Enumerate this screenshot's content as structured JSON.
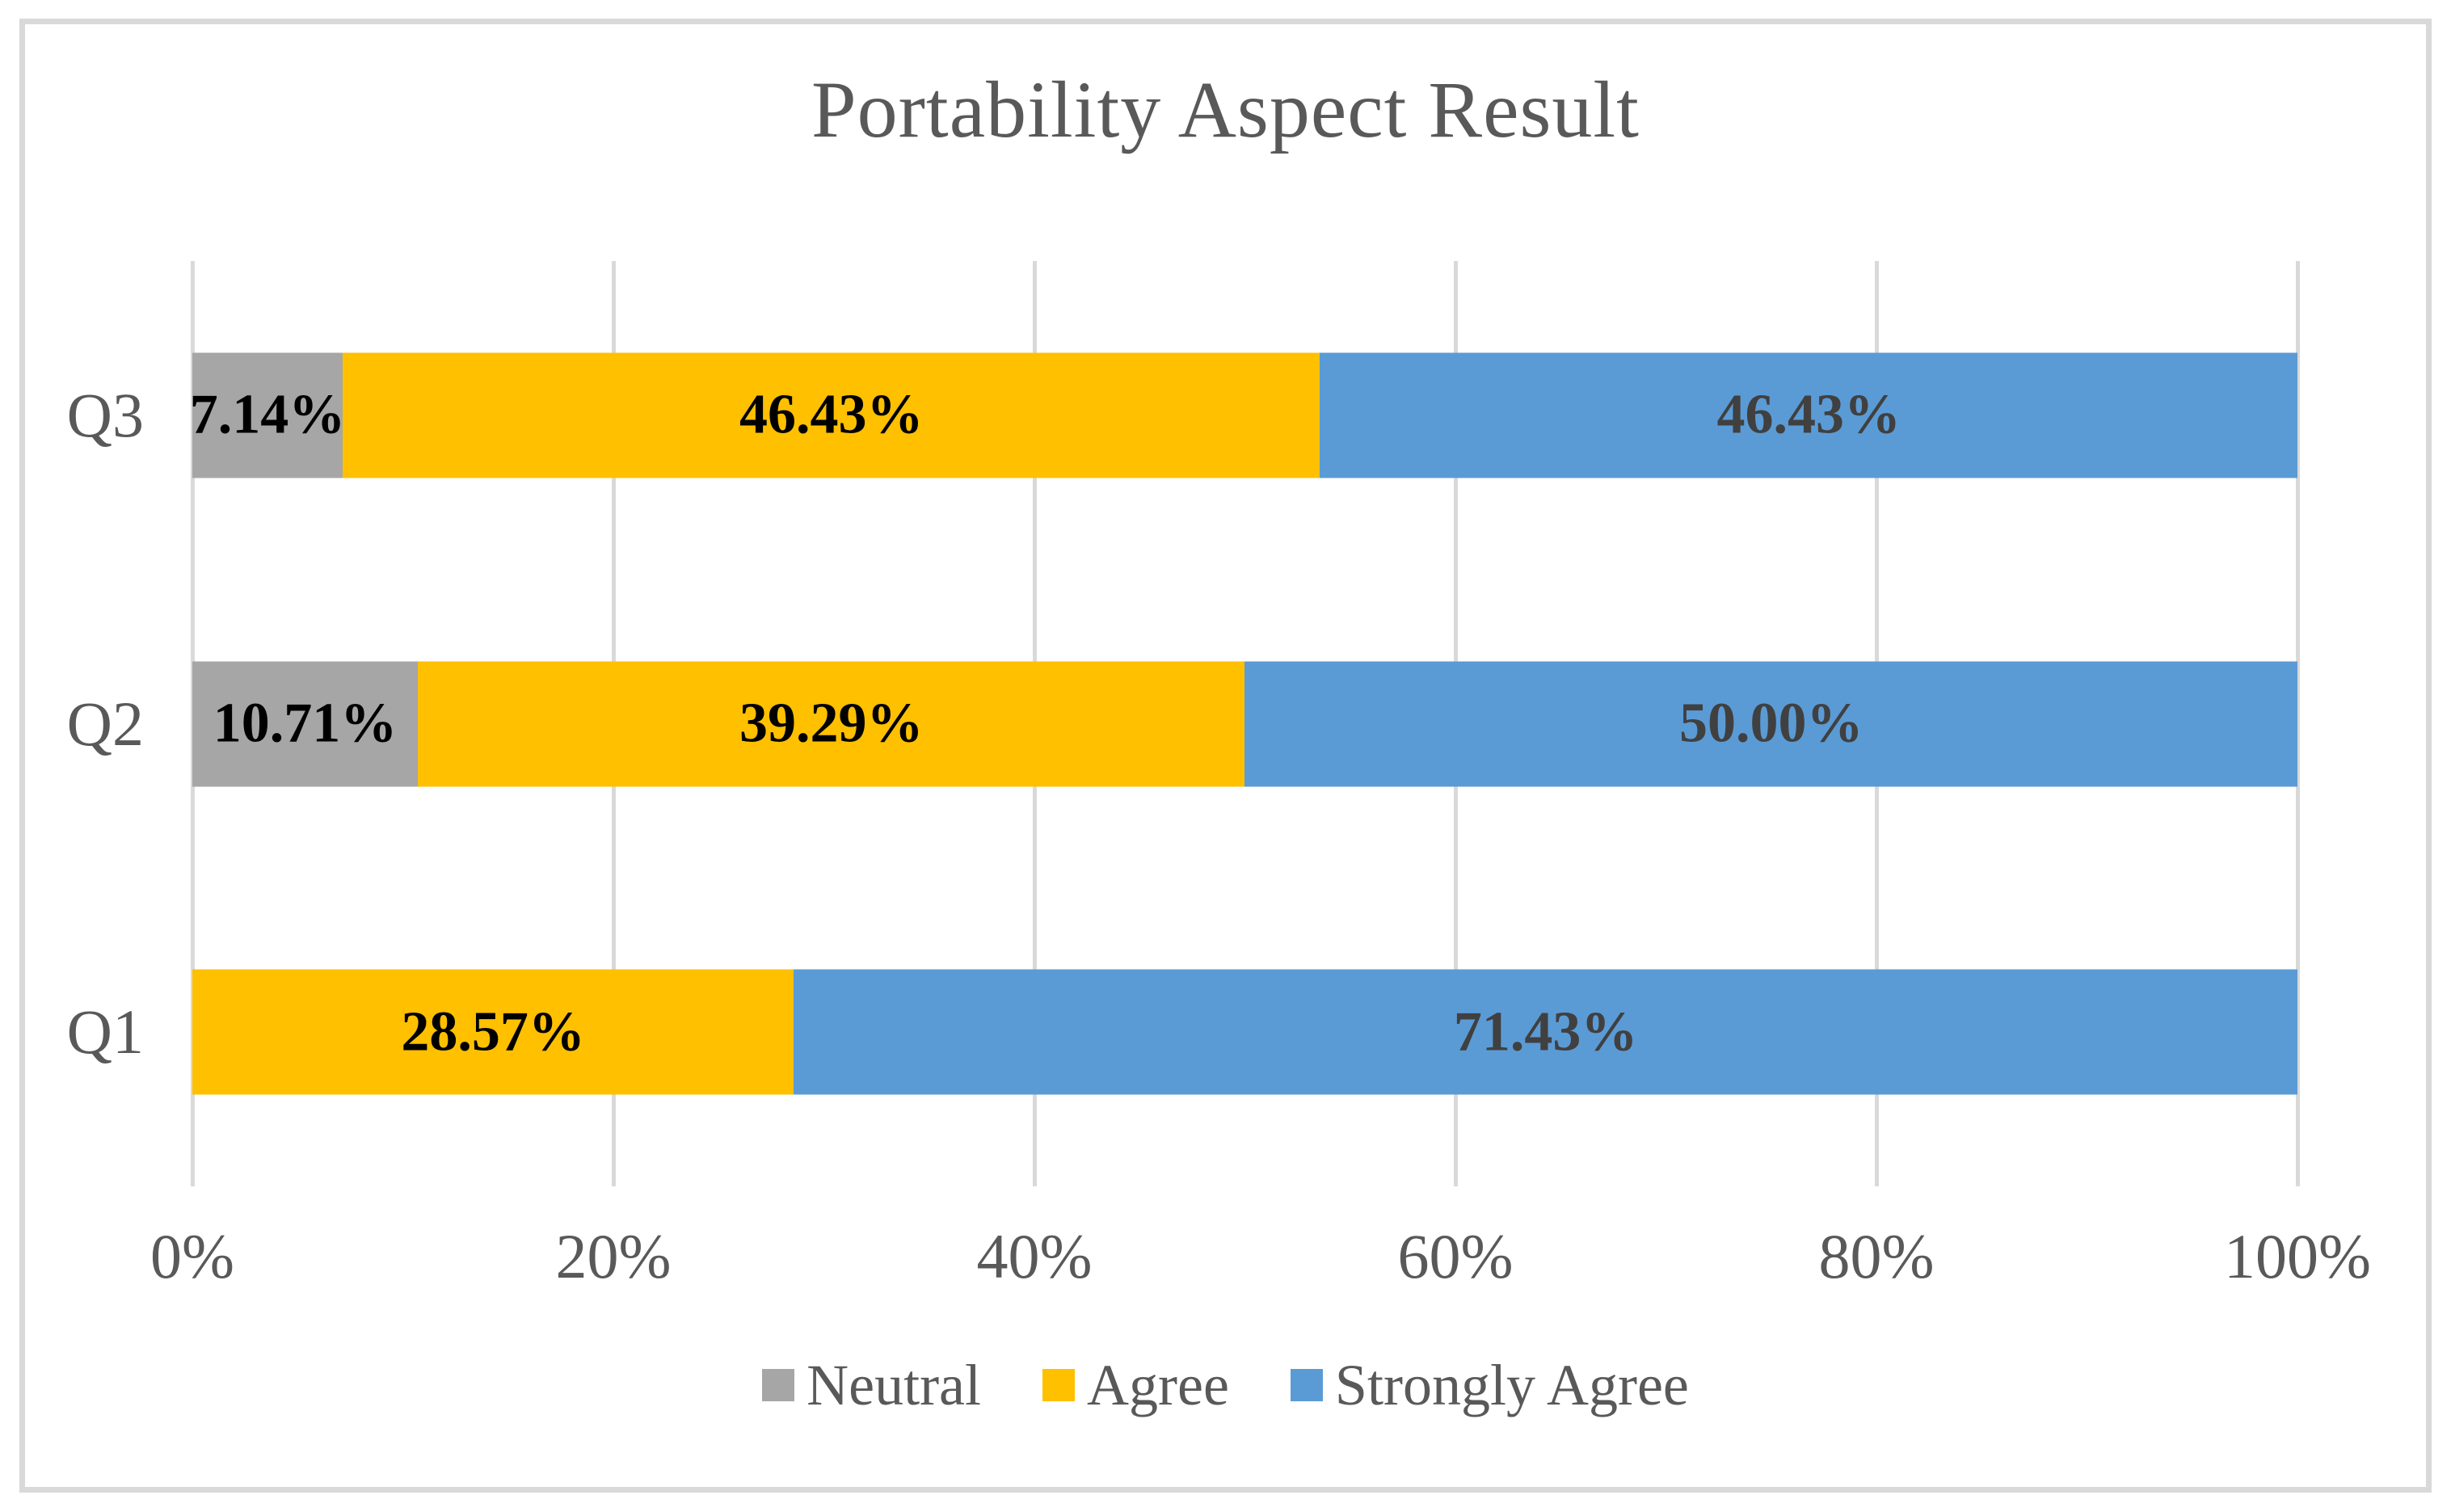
{
  "chart_data": {
    "type": "bar",
    "subtype": "horizontal-stacked",
    "title": "Portability Aspect Result",
    "categories": [
      "Q3",
      "Q2",
      "Q1"
    ],
    "series": [
      {
        "name": "Neutral",
        "color": "#A6A6A6",
        "label_color": "#000000",
        "values": [
          7.14,
          10.71,
          0
        ],
        "labels": [
          "7.14%",
          "10.71%",
          ""
        ]
      },
      {
        "name": "Agree",
        "color": "#FFC000",
        "label_color": "#000000",
        "values": [
          46.43,
          39.29,
          28.57
        ],
        "labels": [
          "46.43%",
          "39.29%",
          "28.57%"
        ]
      },
      {
        "name": "Strongly Agree",
        "color": "#5B9BD5",
        "label_color": "#404040",
        "values": [
          46.43,
          50.0,
          71.43
        ],
        "labels": [
          "46.43%",
          "50.00%",
          "71.43%"
        ]
      }
    ],
    "x_ticks": [
      "0%",
      "20%",
      "40%",
      "60%",
      "80%",
      "100%"
    ],
    "xlim": [
      0,
      100
    ],
    "grid": "vertical-only",
    "legend_position": "bottom"
  },
  "style_colors": {
    "gridline": "#D9D9D9",
    "frame_border": "#D9D9D9",
    "axis_text": "#595959",
    "title_text": "#595959"
  }
}
